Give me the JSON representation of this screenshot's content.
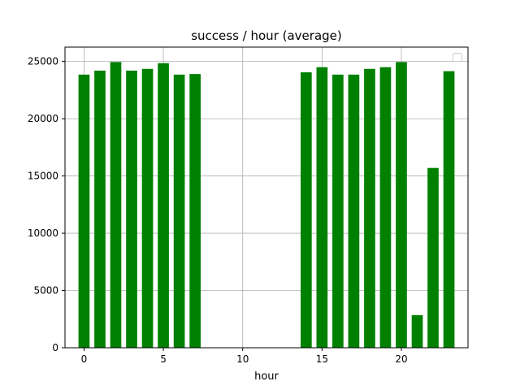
{
  "chart_data": {
    "type": "bar",
    "title": "success / hour (average)",
    "xlabel": "hour",
    "ylabel": "",
    "x": [
      0,
      1,
      2,
      3,
      4,
      5,
      6,
      7,
      14,
      15,
      16,
      17,
      18,
      19,
      20,
      21,
      22,
      23
    ],
    "values": [
      23850,
      24200,
      24950,
      24200,
      24350,
      24850,
      23850,
      23900,
      24050,
      24500,
      23850,
      23850,
      24350,
      24500,
      24950,
      2850,
      15700,
      24150
    ],
    "xlim": [
      -1.2,
      24.2
    ],
    "ylim": [
      0,
      26250
    ],
    "xticks": [
      0,
      5,
      10,
      15,
      20
    ],
    "yticks": [
      0,
      5000,
      10000,
      15000,
      20000,
      25000
    ],
    "bar_width": 0.7,
    "bar_color": "#008000",
    "grid": true,
    "legend": "top-right (empty)"
  }
}
